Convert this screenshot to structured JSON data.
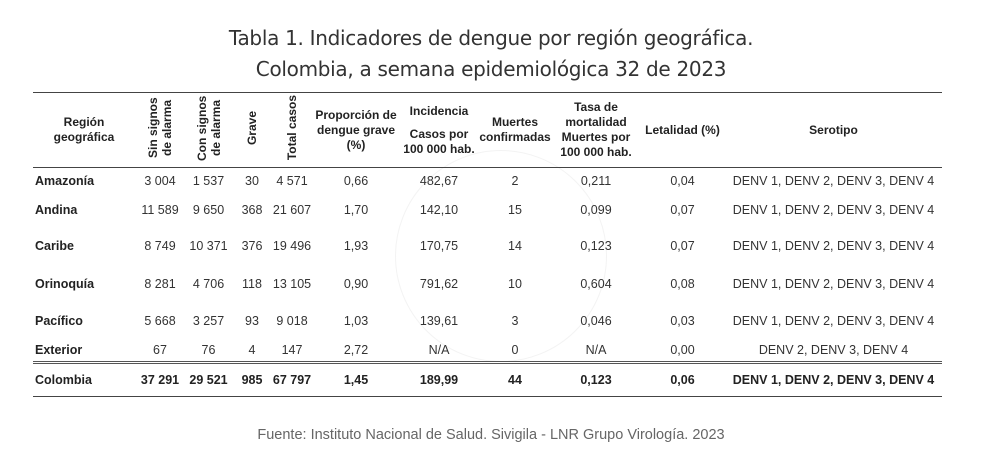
{
  "title_line1": "Tabla 1. Indicadores de dengue por región geográfica.",
  "title_line2": "Colombia, a semana epidemiológica 32 de 2023",
  "headers": {
    "region": "Región geográfica",
    "sin_signos": "Sin signos de alarma",
    "con_signos": "Con signos de alarma",
    "grave": "Grave",
    "total": "Total casos",
    "proporcion": "Proporción de dengue grave (%)",
    "incidencia": "Incidencia",
    "incidencia_sub": "Casos por 100 000 hab.",
    "muertes": "Muertes confirmadas",
    "tasa": "Tasa de mortalidad Muertes por 100 000 hab.",
    "letalidad": "Letalidad (%)",
    "serotipo": "Serotipo"
  },
  "rows": [
    {
      "region": "Amazonía",
      "sin": "3 004",
      "con": "1 537",
      "grave": "30",
      "total": "4 571",
      "prop": "0,66",
      "inc": "482,67",
      "muertes": "2",
      "tasa": "0,211",
      "let": "0,04",
      "sero": "DENV 1, DENV 2, DENV 3, DENV 4"
    },
    {
      "region": "Andina",
      "sin": "11 589",
      "con": "9 650",
      "grave": "368",
      "total": "21 607",
      "prop": "1,70",
      "inc": "142,10",
      "muertes": "15",
      "tasa": "0,099",
      "let": "0,07",
      "sero": "DENV 1, DENV 2, DENV 3, DENV 4"
    },
    {
      "region": "Caribe",
      "sin": "8 749",
      "con": "10 371",
      "grave": "376",
      "total": "19 496",
      "prop": "1,93",
      "inc": "170,75",
      "muertes": "14",
      "tasa": "0,123",
      "let": "0,07",
      "sero": "DENV 1, DENV 2, DENV 3, DENV 4"
    },
    {
      "region": "Orinoquía",
      "sin": "8 281",
      "con": "4 706",
      "grave": "118",
      "total": "13 105",
      "prop": "0,90",
      "inc": "791,62",
      "muertes": "10",
      "tasa": "0,604",
      "let": "0,08",
      "sero": "DENV 1, DENV 2, DENV 3, DENV 4"
    },
    {
      "region": "Pacífico",
      "sin": "5 668",
      "con": "3 257",
      "grave": "93",
      "total": "9 018",
      "prop": "1,03",
      "inc": "139,61",
      "muertes": "3",
      "tasa": "0,046",
      "let": "0,03",
      "sero": "DENV 1, DENV 2, DENV 3, DENV 4"
    },
    {
      "region": "Exterior",
      "sin": "67",
      "con": "76",
      "grave": "4",
      "total": "147",
      "prop": "2,72",
      "inc": "N/A",
      "muertes": "0",
      "tasa": "N/A",
      "let": "0,00",
      "sero": "DENV 2, DENV 3, DENV 4"
    }
  ],
  "total": {
    "region": "Colombia",
    "sin": "37 291",
    "con": "29 521",
    "grave": "985",
    "total": "67 797",
    "prop": "1,45",
    "inc": "189,99",
    "muertes": "44",
    "tasa": "0,123",
    "let": "0,06",
    "sero": "DENV 1, DENV 2, DENV 3, DENV 4"
  },
  "footer": "Fuente: Instituto Nacional de Salud. Sivigila - LNR Grupo Virología. 2023"
}
